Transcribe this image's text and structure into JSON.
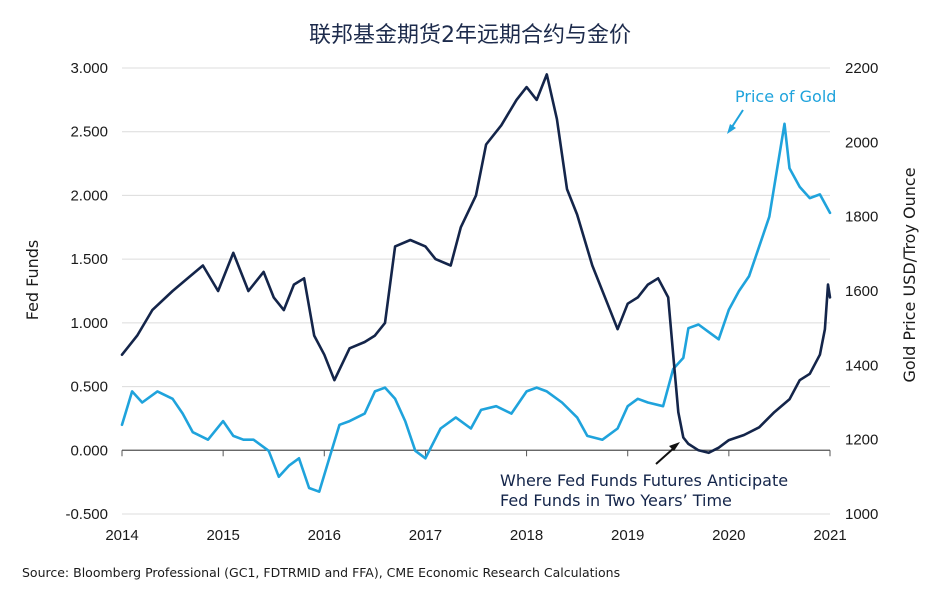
{
  "chart_data": {
    "type": "line",
    "title": "联邦基金期货2年远期合约与金价",
    "source": "Source: Bloomberg Professional (GC1, FDTRMID and FFA), CME Economic Research Calculations",
    "x_ticks": [
      "2014",
      "2015",
      "2016",
      "2017",
      "2018",
      "2019",
      "2020",
      "2021"
    ],
    "x_range": [
      2014,
      2021
    ],
    "y_left": {
      "label": "Fed Funds",
      "range": [
        -0.5,
        3.0
      ],
      "ticks": [
        "3.000",
        "2.500",
        "2.000",
        "1.500",
        "1.000",
        "0.500",
        "0.000",
        "-0.500"
      ],
      "tick_values": [
        3.0,
        2.5,
        2.0,
        1.5,
        1.0,
        0.5,
        0.0,
        -0.5
      ]
    },
    "y_right": {
      "label": "Gold Price USD/Troy Ounce",
      "range": [
        1000,
        2200
      ],
      "ticks": [
        "2200",
        "2000",
        "1800",
        "1600",
        "1400",
        "1200",
        "1000"
      ],
      "tick_values": [
        2200,
        2000,
        1800,
        1600,
        1400,
        1200,
        1000
      ]
    },
    "grid": true,
    "colors": {
      "fed_funds": "#14254a",
      "gold": "#1fa3dc",
      "grid": "#dcdcdc"
    },
    "annotations": {
      "gold": "Price of Gold",
      "fed_line1": "Where Fed Funds Futures Anticipate",
      "fed_line2": "Fed Funds in Two Years’ Time"
    },
    "series": [
      {
        "key": "fed_funds",
        "axis": "left",
        "x": [
          2014.0,
          2014.15,
          2014.3,
          2014.5,
          2014.65,
          2014.8,
          2014.95,
          2015.1,
          2015.25,
          2015.4,
          2015.5,
          2015.6,
          2015.7,
          2015.8,
          2015.9,
          2016.0,
          2016.1,
          2016.25,
          2016.4,
          2016.5,
          2016.6,
          2016.7,
          2016.85,
          2017.0,
          2017.1,
          2017.25,
          2017.35,
          2017.5,
          2017.6,
          2017.75,
          2017.9,
          2018.0,
          2018.1,
          2018.2,
          2018.3,
          2018.4,
          2018.5,
          2018.65,
          2018.8,
          2018.9,
          2019.0,
          2019.1,
          2019.2,
          2019.3,
          2019.4,
          2019.45,
          2019.5,
          2019.55,
          2019.6,
          2019.7,
          2019.8,
          2019.9,
          2020.0,
          2020.15,
          2020.3,
          2020.45,
          2020.6,
          2020.7,
          2020.8,
          2020.9,
          2020.95,
          2020.98,
          2021.0
        ],
        "y": [
          0.75,
          0.9,
          1.1,
          1.25,
          1.35,
          1.45,
          1.25,
          1.55,
          1.25,
          1.4,
          1.2,
          1.1,
          1.3,
          1.35,
          0.9,
          0.75,
          0.55,
          0.8,
          0.85,
          0.9,
          1.0,
          1.6,
          1.65,
          1.6,
          1.5,
          1.45,
          1.75,
          2.0,
          2.4,
          2.55,
          2.75,
          2.85,
          2.75,
          2.95,
          2.6,
          2.05,
          1.85,
          1.45,
          1.15,
          0.95,
          1.15,
          1.2,
          1.3,
          1.35,
          1.2,
          0.75,
          0.3,
          0.1,
          0.05,
          0.0,
          -0.02,
          0.02,
          0.08,
          0.12,
          0.18,
          0.3,
          0.4,
          0.55,
          0.6,
          0.75,
          0.95,
          1.3,
          1.2
        ]
      },
      {
        "key": "gold",
        "axis": "right",
        "x": [
          2014.0,
          2014.1,
          2014.2,
          2014.35,
          2014.5,
          2014.6,
          2014.7,
          2014.85,
          2015.0,
          2015.1,
          2015.2,
          2015.3,
          2015.45,
          2015.55,
          2015.65,
          2015.75,
          2015.85,
          2015.95,
          2016.05,
          2016.15,
          2016.25,
          2016.4,
          2016.5,
          2016.6,
          2016.7,
          2016.8,
          2016.9,
          2017.0,
          2017.15,
          2017.3,
          2017.45,
          2017.55,
          2017.7,
          2017.85,
          2018.0,
          2018.1,
          2018.2,
          2018.35,
          2018.5,
          2018.6,
          2018.75,
          2018.9,
          2019.0,
          2019.1,
          2019.2,
          2019.35,
          2019.45,
          2019.55,
          2019.6,
          2019.7,
          2019.8,
          2019.9,
          2020.0,
          2020.1,
          2020.2,
          2020.3,
          2020.4,
          2020.55,
          2020.6,
          2020.7,
          2020.8,
          2020.9,
          2021.0
        ],
        "y": [
          1240,
          1330,
          1300,
          1330,
          1310,
          1270,
          1220,
          1200,
          1250,
          1210,
          1200,
          1200,
          1170,
          1100,
          1130,
          1150,
          1070,
          1060,
          1150,
          1240,
          1250,
          1270,
          1330,
          1340,
          1310,
          1250,
          1170,
          1150,
          1230,
          1260,
          1230,
          1280,
          1290,
          1270,
          1330,
          1340,
          1330,
          1300,
          1260,
          1210,
          1200,
          1230,
          1290,
          1310,
          1300,
          1290,
          1390,
          1420,
          1500,
          1510,
          1490,
          1470,
          1550,
          1600,
          1640,
          1720,
          1800,
          2050,
          1930,
          1880,
          1850,
          1860,
          1810
        ]
      }
    ]
  }
}
